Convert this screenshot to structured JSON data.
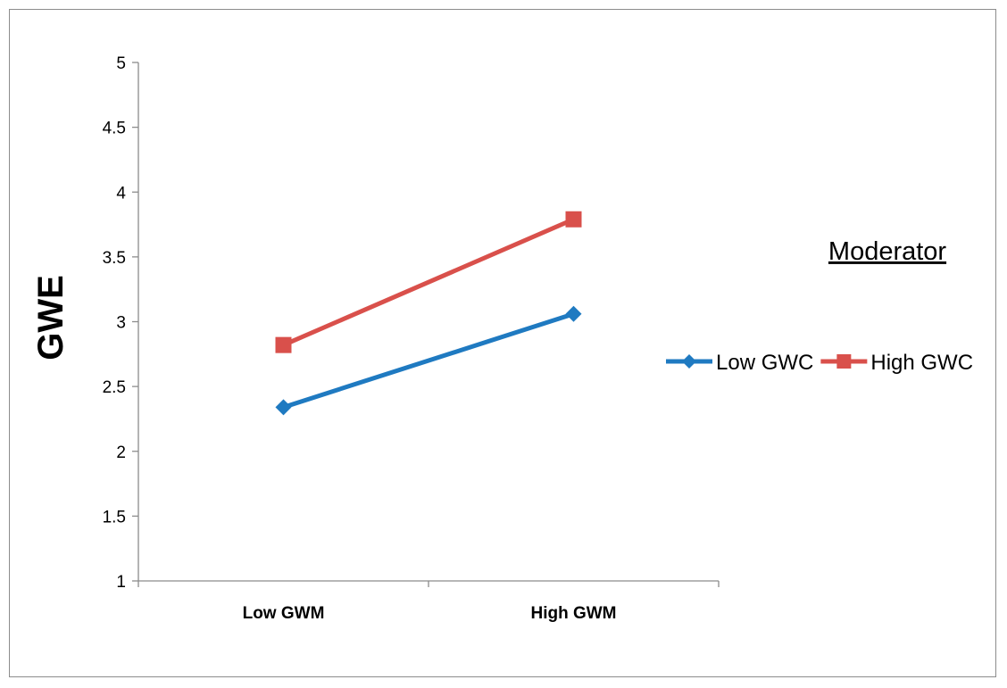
{
  "chart_data": {
    "type": "line",
    "title": "",
    "xlabel": "",
    "ylabel": "GWE",
    "categories": [
      "Low GWM",
      "High GWM"
    ],
    "ylim": [
      1,
      5
    ],
    "yticks": [
      1,
      1.5,
      2,
      2.5,
      3,
      3.5,
      4,
      4.5,
      5
    ],
    "grid": false,
    "legend": {
      "title": "Moderator",
      "placement": "right"
    },
    "series": [
      {
        "name": "Low GWC",
        "values": [
          2.34,
          3.06
        ],
        "color": "#1f7ac1",
        "marker": "diamond"
      },
      {
        "name": "High GWC",
        "values": [
          2.82,
          3.79
        ],
        "color": "#d9504b",
        "marker": "square"
      }
    ]
  }
}
